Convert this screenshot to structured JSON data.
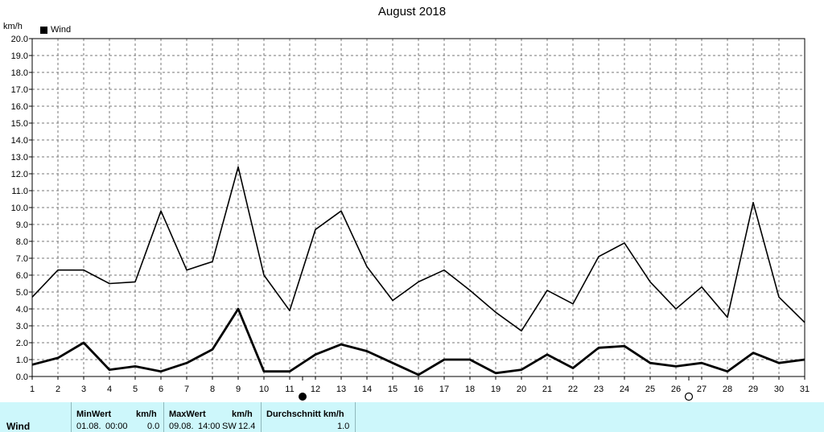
{
  "chart_data": {
    "type": "line",
    "title": "August 2018",
    "ylabel": "km/h",
    "legend": "Wind",
    "legend_position": "top-left",
    "grid": true,
    "ylim": [
      0,
      20
    ],
    "x": [
      1,
      2,
      3,
      4,
      5,
      6,
      7,
      8,
      9,
      10,
      11,
      12,
      13,
      14,
      15,
      16,
      17,
      18,
      19,
      20,
      21,
      22,
      23,
      24,
      25,
      26,
      27,
      28,
      29,
      30,
      31
    ],
    "y_ticks": [
      "0.0",
      "1.0",
      "2.0",
      "3.0",
      "4.0",
      "5.0",
      "6.0",
      "7.0",
      "8.0",
      "9.0",
      "10.0",
      "11.0",
      "12.0",
      "13.0",
      "14.0",
      "15.0",
      "16.0",
      "17.0",
      "18.0",
      "19.0",
      "20.0"
    ],
    "series": [
      {
        "values": [
          4.7,
          6.3,
          6.3,
          5.5,
          5.6,
          9.8,
          6.3,
          6.8,
          12.4,
          6.0,
          3.9,
          8.7,
          9.8,
          6.5,
          4.5,
          5.6,
          6.3,
          5.1,
          3.8,
          2.7,
          5.1,
          4.3,
          7.1,
          7.9,
          5.6,
          4.0,
          5.3,
          3.5,
          10.3,
          4.7,
          3.2
        ]
      },
      {
        "values": [
          0.7,
          1.1,
          2.0,
          0.4,
          0.6,
          0.3,
          0.8,
          1.6,
          4.0,
          0.3,
          0.3,
          1.3,
          1.9,
          1.5,
          0.8,
          0.1,
          1.0,
          1.0,
          0.2,
          0.4,
          1.3,
          0.5,
          1.7,
          1.8,
          0.8,
          0.6,
          0.8,
          0.3,
          1.4,
          0.8,
          1.0
        ]
      }
    ],
    "moon_phases": [
      {
        "day": 11.5,
        "phase": "full"
      },
      {
        "day": 26.5,
        "phase": "new"
      }
    ]
  },
  "stats": {
    "row_label": "Wind",
    "min": {
      "header": "MinWert",
      "unit": "km/h",
      "date": "01.08.",
      "time": "00:00",
      "value": "0.0"
    },
    "max": {
      "header": "MaxWert",
      "unit": "km/h",
      "date": "09.08.",
      "time": "14:00",
      "direction": "SW",
      "value": "12.4"
    },
    "avg": {
      "header": "Durchschnitt km/h",
      "value": "1.0"
    }
  }
}
